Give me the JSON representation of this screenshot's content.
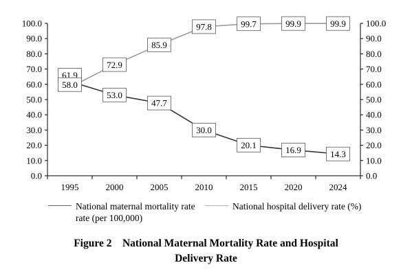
{
  "chart_data": {
    "type": "line",
    "x": [
      "1995",
      "2000",
      "2005",
      "2010",
      "2015",
      "2020",
      "2024"
    ],
    "series": [
      {
        "name": "National maternal mortality rate (per 100,000)",
        "legend_lines": [
          "National maternal mortality rate",
          "rate (per 100,000)"
        ],
        "color": "#333333",
        "values": [
          61.9,
          53.0,
          47.7,
          30.0,
          20.1,
          16.9,
          14.3
        ],
        "labels": [
          "61.9",
          "53.0",
          "47.7",
          "30.0",
          "20.1",
          "16.9",
          "14.3"
        ]
      },
      {
        "name": "National hospital delivery rate (%)",
        "legend_lines": [
          "National hospital delivery rate (%)"
        ],
        "color": "#999999",
        "values": [
          58.0,
          72.9,
          85.9,
          97.8,
          99.7,
          99.9,
          99.9
        ],
        "labels": [
          "58.0",
          "72.9",
          "85.9",
          "97.8",
          "99.7",
          "99.9",
          "99.9"
        ]
      }
    ],
    "ylim": [
      0,
      100
    ],
    "yticks": [
      "0.0",
      "10.0",
      "20.0",
      "30.0",
      "40.0",
      "50.0",
      "60.0",
      "70.0",
      "80.0",
      "90.0",
      "100.0"
    ],
    "y2ticks": [
      "0.0",
      "10.0",
      "20.0",
      "30.0",
      "40.0",
      "50.0",
      "60.0",
      "70.0",
      "80.0",
      "90.0",
      "100.0"
    ],
    "grid": false,
    "legend_position": "bottom"
  },
  "caption": {
    "line1": "Figure 2    National Maternal Mortality Rate and Hospital",
    "line2": "Delivery Rate"
  }
}
